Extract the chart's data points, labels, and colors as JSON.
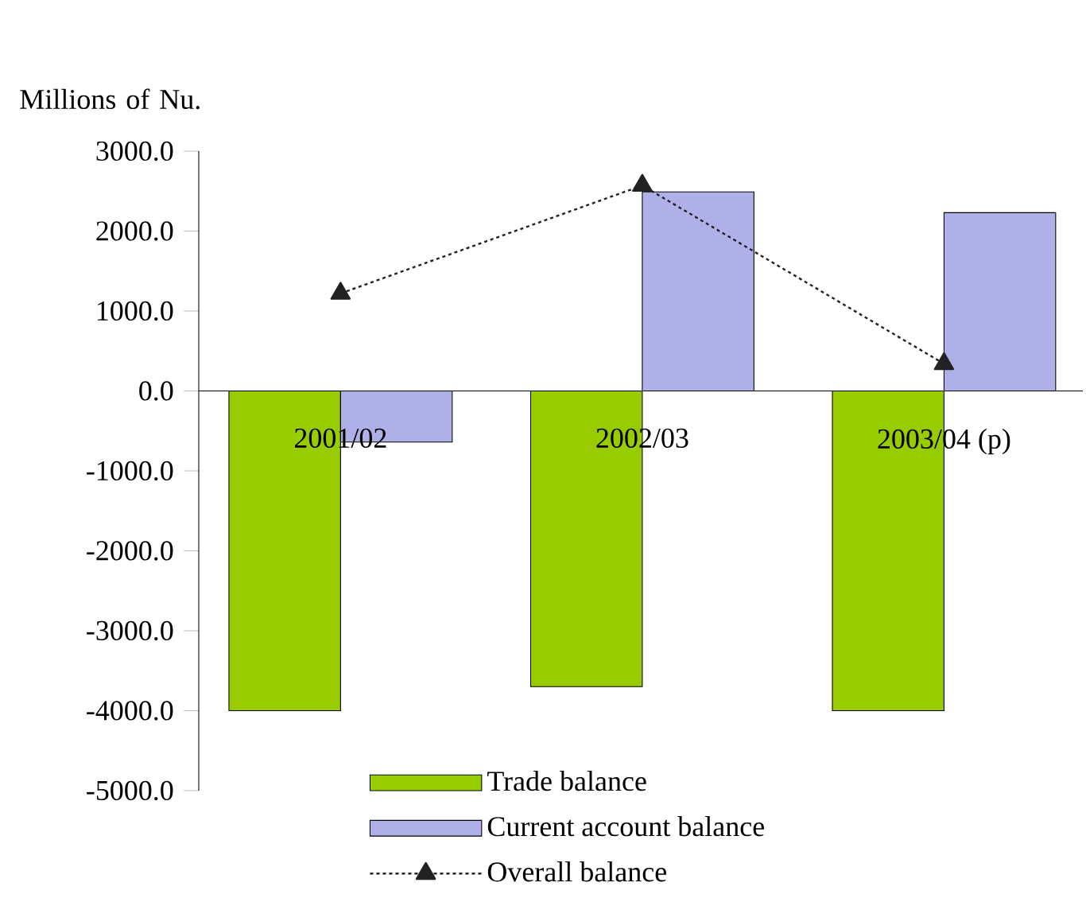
{
  "chart_data": {
    "type": "bar",
    "ylabel": "Millions of Nu.",
    "categories": [
      "2001/02",
      "2002/03",
      "2003/04 (p)"
    ],
    "series": [
      {
        "name": "Trade balance",
        "color": "#99cc00",
        "values": [
          -4000,
          -3700,
          -4000
        ]
      },
      {
        "name": "Current account balance",
        "color": "#b0b0e8",
        "values": [
          -640,
          2490,
          2230
        ]
      },
      {
        "name": "Overall balance",
        "type": "line",
        "color": "#222222",
        "marker": "triangle",
        "line_style": "dotted",
        "values": [
          1220,
          2570,
          340
        ]
      }
    ],
    "ylim": [
      -5000,
      3000
    ],
    "yticks": [
      {
        "value": -5000,
        "label": "-5000.0"
      },
      {
        "value": -4000,
        "label": "-4000.0"
      },
      {
        "value": -3000,
        "label": "-3000.0"
      },
      {
        "value": -2000,
        "label": "-2000.0"
      },
      {
        "value": -1000,
        "label": "-1000.0"
      },
      {
        "value": 0,
        "label": "0.0"
      },
      {
        "value": 1000,
        "label": "1000.0"
      },
      {
        "value": 2000,
        "label": "2000.0"
      },
      {
        "value": 3000,
        "label": "3000.0"
      }
    ],
    "legend": "bottom",
    "grid": false
  }
}
